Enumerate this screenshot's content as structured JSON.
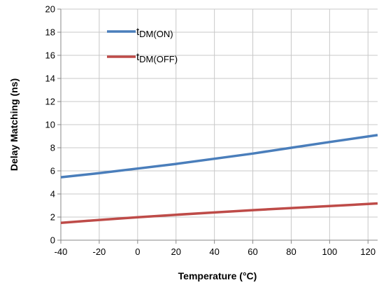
{
  "chart_data": {
    "type": "line",
    "title": "",
    "xlabel": "Temperature (°C)",
    "ylabel": "Delay Matching (ns)",
    "xlim": [
      -40,
      125
    ],
    "ylim": [
      0,
      20
    ],
    "x_ticks": [
      -40,
      -20,
      0,
      20,
      40,
      60,
      80,
      100,
      120
    ],
    "y_ticks": [
      0,
      2,
      4,
      6,
      8,
      10,
      12,
      14,
      16,
      18,
      20
    ],
    "grid": true,
    "legend_position": "top-left",
    "series": [
      {
        "name": "tDM(ON)",
        "name_main": "t",
        "name_sub": "DM(ON)",
        "color": "#4a7ebb",
        "x": [
          -40,
          -20,
          0,
          20,
          40,
          60,
          80,
          100,
          125
        ],
        "y": [
          5.45,
          5.8,
          6.2,
          6.6,
          7.05,
          7.5,
          8.0,
          8.5,
          9.1
        ]
      },
      {
        "name": "tDM(OFF)",
        "name_main": "t",
        "name_sub": "DM(OFF)",
        "color": "#be4b48",
        "x": [
          -40,
          -20,
          0,
          20,
          40,
          60,
          80,
          100,
          125
        ],
        "y": [
          1.5,
          1.75,
          1.98,
          2.2,
          2.4,
          2.6,
          2.78,
          2.95,
          3.18
        ]
      }
    ]
  }
}
